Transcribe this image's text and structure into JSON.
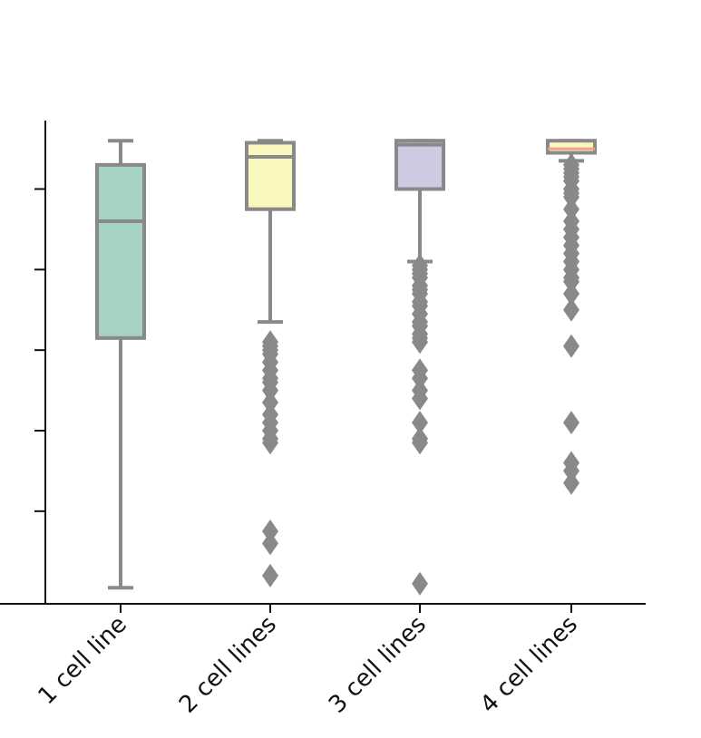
{
  "chart_data": {
    "type": "box",
    "title": "",
    "xlabel": "",
    "ylabel": "",
    "categories": [
      "1 cell line",
      "2 cell lines",
      "3 cell lines",
      "4 cell lines"
    ],
    "ylim": [
      -0.03,
      1.17
    ],
    "y_ticks": [
      0.0,
      0.2,
      0.4,
      0.6,
      0.8,
      1.0
    ],
    "grid": false,
    "boxes": [
      {
        "category": "1 cell line",
        "color": "#a4d3c6",
        "whisker_low": 0.01,
        "q1": 0.63,
        "median": 0.92,
        "q3": 1.06,
        "whisker_high": 1.12,
        "outliers": []
      },
      {
        "category": "2 cell lines",
        "color": "#f9f6be",
        "whisker_low": 0.67,
        "q1": 0.95,
        "median": 1.08,
        "q3": 1.115,
        "whisker_high": 1.12,
        "outliers": [
          0.62,
          0.61,
          0.6,
          0.59,
          0.57,
          0.55,
          0.53,
          0.52,
          0.5,
          0.47,
          0.44,
          0.42,
          0.4,
          0.38,
          0.37,
          0.15,
          0.12,
          0.04
        ]
      },
      {
        "category": "3 cell lines",
        "color": "#cdcbe1",
        "whisker_low": 0.82,
        "q1": 1.0,
        "median": 1.11,
        "q3": 1.12,
        "whisker_high": 1.12,
        "outliers": [
          0.81,
          0.8,
          0.79,
          0.78,
          0.76,
          0.75,
          0.74,
          0.72,
          0.71,
          0.69,
          0.67,
          0.66,
          0.64,
          0.63,
          0.62,
          0.55,
          0.53,
          0.5,
          0.48,
          0.42,
          0.38,
          0.37,
          0.02
        ]
      },
      {
        "category": "4 cell lines",
        "color": "#f2a08f",
        "whisker_low": 1.07,
        "q1": 1.09,
        "median": 1.1,
        "q3": 1.12,
        "whisker_high": 1.12,
        "outliers": [
          1.06,
          1.05,
          1.04,
          1.03,
          1.02,
          1.0,
          0.99,
          0.98,
          0.95,
          0.92,
          0.9,
          0.88,
          0.86,
          0.84,
          0.82,
          0.8,
          0.78,
          0.77,
          0.74,
          0.7,
          0.61,
          0.42,
          0.32,
          0.3,
          0.27
        ]
      }
    ],
    "colors": {
      "box_edge": "#898989",
      "axis": "#111111"
    }
  }
}
